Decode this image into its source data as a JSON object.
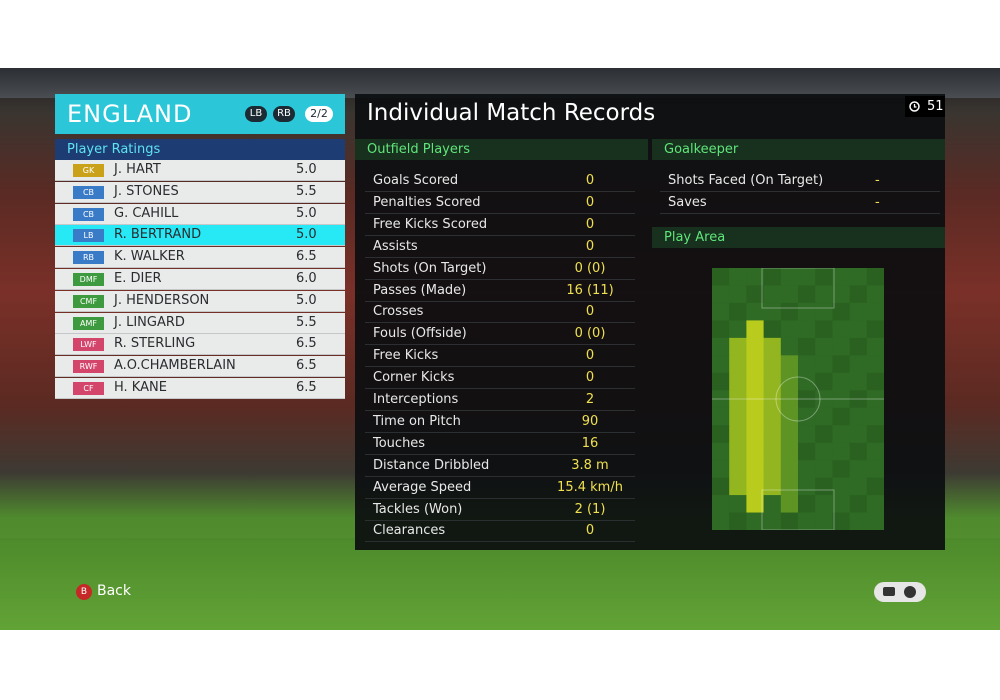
{
  "team": {
    "name": "ENGLAND",
    "badges": [
      "LB",
      "RB"
    ],
    "page": "2/2"
  },
  "ratings_header": "Player Ratings",
  "players": [
    {
      "pos": "GK",
      "name": "J. HART",
      "rating": "5.0",
      "color": "#c9a21a"
    },
    {
      "pos": "CB",
      "name": "J. STONES",
      "rating": "5.5",
      "color": "#3a7bc8"
    },
    {
      "pos": "CB",
      "name": "G. CAHILL",
      "rating": "5.0",
      "color": "#3a7bc8"
    },
    {
      "pos": "LB",
      "name": "R. BERTRAND",
      "rating": "5.0",
      "color": "#3a7bc8"
    },
    {
      "pos": "RB",
      "name": "K. WALKER",
      "rating": "6.5",
      "color": "#3a7bc8"
    },
    {
      "pos": "DMF",
      "name": "E. DIER",
      "rating": "6.0",
      "color": "#3e9a3e"
    },
    {
      "pos": "CMF",
      "name": "J. HENDERSON",
      "rating": "5.0",
      "color": "#3e9a3e"
    },
    {
      "pos": "AMF",
      "name": "J. LINGARD",
      "rating": "5.5",
      "color": "#3e9a3e"
    },
    {
      "pos": "LWF",
      "name": "R. STERLING",
      "rating": "6.5",
      "color": "#d4456b"
    },
    {
      "pos": "RWF",
      "name": "A.O.CHAMBERLAIN",
      "rating": "6.5",
      "color": "#d4456b"
    },
    {
      "pos": "CF",
      "name": "H. KANE",
      "rating": "6.5",
      "color": "#d4456b"
    }
  ],
  "selected_player": 3,
  "records_title": "Individual Match Records",
  "clock": "51",
  "outfield_header": "Outfield Players",
  "stats": [
    {
      "label": "Goals Scored",
      "value": "0"
    },
    {
      "label": "Penalties Scored",
      "value": "0"
    },
    {
      "label": "Free Kicks Scored",
      "value": "0"
    },
    {
      "label": "Assists",
      "value": "0"
    },
    {
      "label": "Shots (On Target)",
      "value": "0 (0)"
    },
    {
      "label": "Passes (Made)",
      "value": "16 (11)"
    },
    {
      "label": "Crosses",
      "value": "0"
    },
    {
      "label": "Fouls (Offside)",
      "value": "0 (0)"
    },
    {
      "label": "Free Kicks",
      "value": "0"
    },
    {
      "label": "Corner Kicks",
      "value": "0"
    },
    {
      "label": "Interceptions",
      "value": "2"
    },
    {
      "label": "Time on Pitch",
      "value": "90"
    },
    {
      "label": "Touches",
      "value": "16"
    },
    {
      "label": "Distance Dribbled",
      "value": "3.8 m"
    },
    {
      "label": "Average Speed",
      "value": "15.4 km/h"
    },
    {
      "label": "Tackles (Won)",
      "value": "2 (1)"
    },
    {
      "label": "Clearances",
      "value": "0"
    }
  ],
  "goalkeeper_header": "Goalkeeper",
  "goalkeeper_stats": [
    {
      "label": "Shots Faced (On Target)",
      "value": "-"
    },
    {
      "label": "Saves",
      "value": "-"
    }
  ],
  "play_area_header": "Play Area",
  "button": "B",
  "back": "Back"
}
